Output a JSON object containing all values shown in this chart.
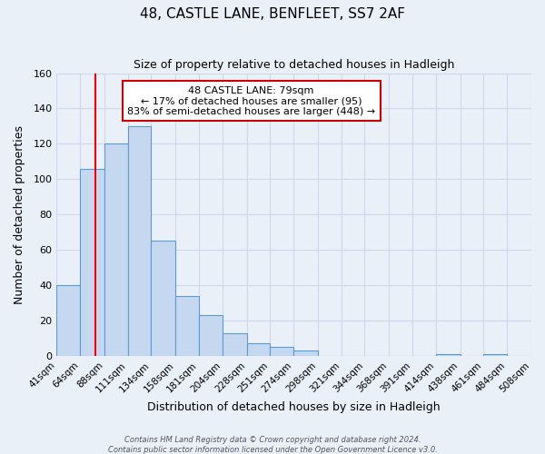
{
  "title": "48, CASTLE LANE, BENFLEET, SS7 2AF",
  "subtitle": "Size of property relative to detached houses in Hadleigh",
  "xlabel": "Distribution of detached houses by size in Hadleigh",
  "ylabel": "Number of detached properties",
  "footer_line1": "Contains HM Land Registry data © Crown copyright and database right 2024.",
  "footer_line2": "Contains public sector information licensed under the Open Government Licence v3.0.",
  "bin_edges": [
    41,
    64,
    88,
    111,
    134,
    158,
    181,
    204,
    228,
    251,
    274,
    298,
    321,
    344,
    368,
    391,
    414,
    438,
    461,
    484,
    508
  ],
  "bin_labels": [
    "41sqm",
    "64sqm",
    "88sqm",
    "111sqm",
    "134sqm",
    "158sqm",
    "181sqm",
    "204sqm",
    "228sqm",
    "251sqm",
    "274sqm",
    "298sqm",
    "321sqm",
    "344sqm",
    "368sqm",
    "391sqm",
    "414sqm",
    "438sqm",
    "461sqm",
    "484sqm",
    "508sqm"
  ],
  "bar_heights": [
    40,
    106,
    120,
    130,
    65,
    34,
    23,
    13,
    7,
    5,
    3,
    0,
    0,
    0,
    0,
    0,
    1,
    0,
    1,
    0
  ],
  "bar_color": "#c5d8f0",
  "bar_edge_color": "#5b9bd5",
  "red_line_x": 79,
  "ylim": [
    0,
    160
  ],
  "yticks": [
    0,
    20,
    40,
    60,
    80,
    100,
    120,
    140,
    160
  ],
  "annotation_text": "48 CASTLE LANE: 79sqm\n← 17% of detached houses are smaller (95)\n83% of semi-detached houses are larger (448) →",
  "annotation_box_color": "#ffffff",
  "annotation_box_edge_color": "#cc0000",
  "grid_color": "#d0d8e8",
  "background_color": "#eaf0f8"
}
